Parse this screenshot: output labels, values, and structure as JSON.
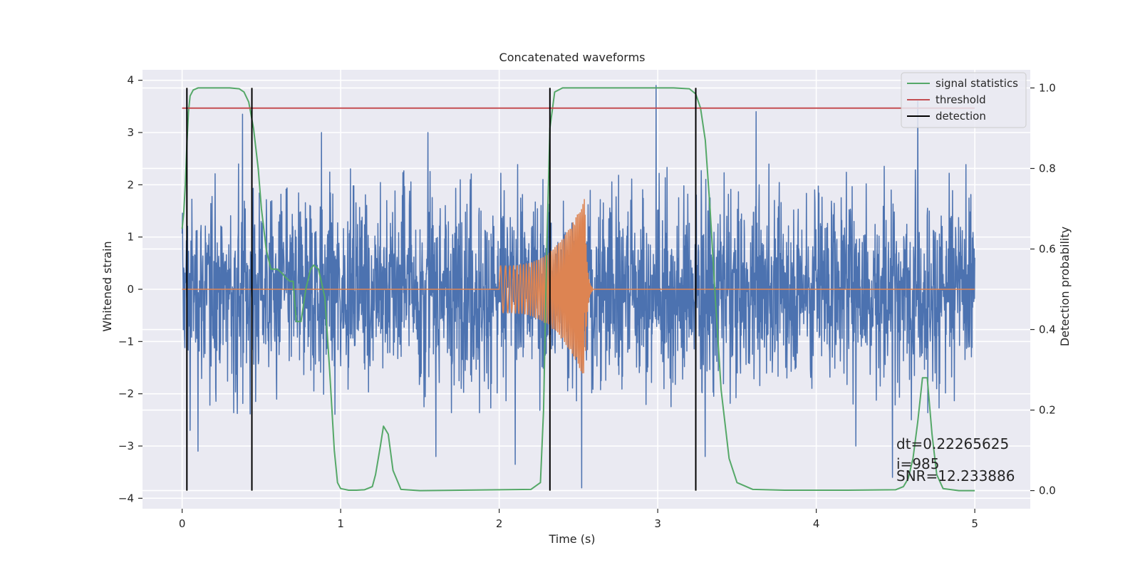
{
  "chart_data": {
    "type": "line",
    "title": "Concatenated waveforms",
    "xlabel": "Time (s)",
    "ylabel": "Whitened strain",
    "y2label": "Detection probability",
    "xlim": [
      -0.25,
      5.35
    ],
    "ylim": [
      -4.2,
      4.2
    ],
    "y2lim": [
      -0.045,
      1.045
    ],
    "xticks": [
      0,
      1,
      2,
      3,
      4,
      5
    ],
    "yticks": [
      -4,
      -3,
      -2,
      -1,
      0,
      1,
      2,
      3,
      4
    ],
    "y2ticks": [
      0.0,
      0.2,
      0.4,
      0.6,
      0.8,
      1.0
    ],
    "grid": true,
    "legend_position": "top-right",
    "background": "#eaeaf2",
    "series": [
      {
        "name": "",
        "axis": "left",
        "color": "#4c72b0",
        "kind": "noisy strain",
        "x_range": [
          0,
          5
        ],
        "typical_envelope": [
          -1.6,
          2.3
        ],
        "spikes": [
          {
            "x": 0.38,
            "y": 3.35
          },
          {
            "x": 0.88,
            "y": 3.0
          },
          {
            "x": 1.55,
            "y": 3.0
          },
          {
            "x": 2.99,
            "y": 3.9
          },
          {
            "x": 3.62,
            "y": 3.4
          },
          {
            "x": 4.64,
            "y": 3.6
          },
          {
            "x": 0.05,
            "y": -2.7
          },
          {
            "x": 0.1,
            "y": -3.1
          },
          {
            "x": 1.6,
            "y": -3.2
          },
          {
            "x": 2.1,
            "y": -3.35
          },
          {
            "x": 2.52,
            "y": -3.8
          },
          {
            "x": 4.48,
            "y": -3.6
          },
          {
            "x": 4.25,
            "y": -3.0
          },
          {
            "x": 3.3,
            "y": -3.2
          }
        ]
      },
      {
        "name": "",
        "axis": "left",
        "color": "#dd8452",
        "kind": "chirp",
        "x_range": [
          0,
          5
        ],
        "chirp_start": 2.0,
        "chirp_merger": 2.54,
        "start_amplitude": 0.45,
        "peak_amplitude": 1.75
      },
      {
        "name": "signal statistics",
        "axis": "right",
        "color": "#55a868",
        "x": [
          0.0,
          0.01,
          0.02,
          0.03,
          0.04,
          0.05,
          0.07,
          0.1,
          0.15,
          0.2,
          0.3,
          0.36,
          0.39,
          0.42,
          0.45,
          0.48,
          0.5,
          0.53,
          0.56,
          0.6,
          0.63,
          0.65,
          0.68,
          0.7,
          0.72,
          0.75,
          0.78,
          0.81,
          0.83,
          0.86,
          0.9,
          0.93,
          0.96,
          0.98,
          1.0,
          1.05,
          1.1,
          1.15,
          1.2,
          1.22,
          1.25,
          1.27,
          1.3,
          1.33,
          1.38,
          1.5,
          2.0,
          2.2,
          2.26,
          2.28,
          2.3,
          2.32,
          2.35,
          2.4,
          2.5,
          2.8,
          3.1,
          3.2,
          3.24,
          3.27,
          3.3,
          3.33,
          3.36,
          3.4,
          3.45,
          3.5,
          3.6,
          3.8,
          4.2,
          4.5,
          4.55,
          4.58,
          4.61,
          4.64,
          4.67,
          4.7,
          4.73,
          4.76,
          4.8,
          4.9,
          5.0
        ],
        "values": [
          0.65,
          0.69,
          0.76,
          0.86,
          0.94,
          0.98,
          0.995,
          1.0,
          1.0,
          1.0,
          1.0,
          0.998,
          0.99,
          0.965,
          0.9,
          0.8,
          0.7,
          0.6,
          0.55,
          0.55,
          0.54,
          0.53,
          0.52,
          0.52,
          0.42,
          0.42,
          0.5,
          0.55,
          0.56,
          0.55,
          0.48,
          0.3,
          0.1,
          0.02,
          0.005,
          0.001,
          0.001,
          0.002,
          0.01,
          0.04,
          0.11,
          0.16,
          0.14,
          0.05,
          0.003,
          0.0,
          0.002,
          0.003,
          0.02,
          0.2,
          0.6,
          0.9,
          0.99,
          1.0,
          1.0,
          1.0,
          1.0,
          0.998,
          0.985,
          0.95,
          0.87,
          0.7,
          0.5,
          0.25,
          0.08,
          0.02,
          0.003,
          0.001,
          0.001,
          0.002,
          0.01,
          0.03,
          0.08,
          0.17,
          0.28,
          0.28,
          0.14,
          0.04,
          0.005,
          0.0,
          0.0
        ]
      },
      {
        "name": "threshold",
        "axis": "right",
        "color": "#c44e52",
        "x": [
          0,
          5
        ],
        "values": [
          0.95,
          0.95
        ]
      },
      {
        "name": "detection",
        "axis": "right",
        "color": "#000000",
        "kind": "vertical lines",
        "x": [
          0.03,
          0.44,
          2.32,
          3.24
        ],
        "y_range": [
          0.0,
          1.0
        ]
      }
    ],
    "annotations": [
      "dt=0.22265625",
      " i=985",
      "SNR=12.233886"
    ]
  }
}
